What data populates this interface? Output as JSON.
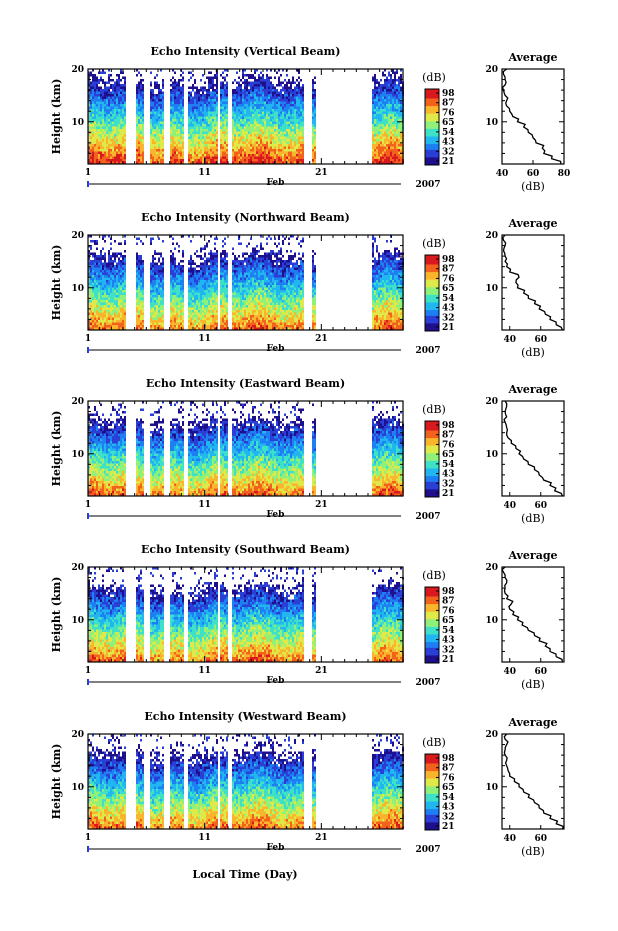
{
  "colors": {
    "colormap": [
      "#1e0f8c",
      "#2a3fd6",
      "#1d7ff2",
      "#22b6f0",
      "#3fe0c8",
      "#8ff07a",
      "#dfe94a",
      "#f9b52b",
      "#f3621d",
      "#d8191e"
    ]
  },
  "xlabel": "Local Time (Day)",
  "chart_data": [
    {
      "type": "heatmap",
      "title": "Echo Intensity (Vertical Beam)",
      "ylabel": "Height (km)",
      "ylim": [
        2,
        20
      ],
      "y_ticks": [
        "20",
        "10"
      ],
      "x_ticks": [
        "1",
        "11",
        "21"
      ],
      "x_month": "Feb",
      "x_year": "2007",
      "xlim": [
        1,
        28
      ],
      "colorbar": {
        "label": "(dB)",
        "ticks": [
          "98",
          "87",
          "76",
          "65",
          "54",
          "43",
          "32",
          "21"
        ]
      },
      "data_gaps_days": [
        [
          4.2,
          5.1
        ],
        [
          5.7,
          6.2
        ],
        [
          7.5,
          7.9
        ],
        [
          9.1,
          9.5
        ],
        [
          12.0,
          12.3
        ],
        [
          12.9,
          13.2
        ],
        [
          19.5,
          20.1
        ],
        [
          20.5,
          25.2
        ]
      ],
      "average_profile": {
        "title": "Average",
        "xlabel": "(dB)",
        "xlim": [
          40,
          80
        ],
        "x_ticks": [
          "40",
          "60",
          "80"
        ],
        "y_ticks": [
          "20",
          "10"
        ],
        "height_km": [
          2,
          3,
          4,
          5,
          6,
          7,
          8,
          9,
          10,
          11,
          12,
          13,
          14,
          15,
          16,
          17,
          18,
          19,
          20
        ],
        "db": [
          78,
          72,
          67,
          66,
          62,
          60,
          57,
          54,
          50,
          47,
          45,
          43,
          43,
          42,
          41,
          42,
          42,
          41,
          43
        ]
      }
    },
    {
      "type": "heatmap",
      "title": "Echo Intensity (Northward Beam)",
      "ylabel": "Height (km)",
      "ylim": [
        2,
        20
      ],
      "y_ticks": [
        "20",
        "10"
      ],
      "x_ticks": [
        "1",
        "11",
        "21"
      ],
      "x_month": "Feb",
      "x_year": "2007",
      "xlim": [
        1,
        28
      ],
      "colorbar": {
        "label": "(dB)",
        "ticks": [
          "98",
          "87",
          "76",
          "65",
          "54",
          "43",
          "32",
          "21"
        ]
      },
      "data_gaps_days": [
        [
          4.2,
          5.1
        ],
        [
          5.7,
          6.2
        ],
        [
          7.5,
          7.9
        ],
        [
          9.1,
          9.5
        ],
        [
          12.0,
          12.3
        ],
        [
          12.9,
          13.2
        ],
        [
          19.5,
          20.1
        ],
        [
          20.5,
          25.2
        ]
      ],
      "average_profile": {
        "title": "Average",
        "xlabel": "(dB)",
        "xlim": [
          35,
          75
        ],
        "x_ticks": [
          "40",
          "60"
        ],
        "y_ticks": [
          "20",
          "10"
        ],
        "height_km": [
          2,
          3,
          4,
          5,
          6,
          7,
          8,
          9,
          10,
          11,
          12,
          13,
          14,
          15,
          16,
          17,
          18,
          19,
          20
        ],
        "db": [
          74,
          70,
          66,
          63,
          59,
          56,
          52,
          49,
          45,
          44,
          46,
          40,
          38,
          37,
          37,
          36,
          37,
          36,
          37
        ]
      }
    },
    {
      "type": "heatmap",
      "title": "Echo Intensity (Eastward Beam)",
      "ylabel": "Height (km)",
      "ylim": [
        2,
        20
      ],
      "y_ticks": [
        "20",
        "10"
      ],
      "x_ticks": [
        "1",
        "11",
        "21"
      ],
      "x_month": "Feb",
      "x_year": "2007",
      "xlim": [
        1,
        28
      ],
      "colorbar": {
        "label": "(dB)",
        "ticks": [
          "98",
          "87",
          "76",
          "65",
          "54",
          "43",
          "32",
          "21"
        ]
      },
      "data_gaps_days": [
        [
          4.2,
          5.1
        ],
        [
          5.7,
          6.2
        ],
        [
          7.5,
          7.9
        ],
        [
          9.1,
          9.5
        ],
        [
          12.0,
          12.3
        ],
        [
          12.9,
          13.2
        ],
        [
          19.5,
          20.1
        ],
        [
          20.5,
          25.2
        ]
      ],
      "average_profile": {
        "title": "Average",
        "xlabel": "(dB)",
        "xlim": [
          35,
          75
        ],
        "x_ticks": [
          "40",
          "60"
        ],
        "y_ticks": [
          "20",
          "10"
        ],
        "height_km": [
          2,
          3,
          4,
          5,
          6,
          7,
          8,
          9,
          10,
          11,
          12,
          13,
          14,
          15,
          16,
          17,
          18,
          19,
          20
        ],
        "db": [
          74,
          69,
          66,
          62,
          59,
          56,
          52,
          49,
          46,
          44,
          41,
          39,
          38,
          38,
          37,
          38,
          37,
          38,
          37
        ]
      }
    },
    {
      "type": "heatmap",
      "title": "Echo Intensity (Southward Beam)",
      "ylabel": "Height (km)",
      "ylim": [
        2,
        20
      ],
      "y_ticks": [
        "20",
        "10"
      ],
      "x_ticks": [
        "1",
        "11",
        "21"
      ],
      "x_month": "Feb",
      "x_year": "2007",
      "xlim": [
        1,
        28
      ],
      "colorbar": {
        "label": "(dB)",
        "ticks": [
          "98",
          "87",
          "76",
          "65",
          "54",
          "43",
          "32",
          "21"
        ]
      },
      "data_gaps_days": [
        [
          4.2,
          5.1
        ],
        [
          5.7,
          6.2
        ],
        [
          7.5,
          7.9
        ],
        [
          9.1,
          9.5
        ],
        [
          12.0,
          12.3
        ],
        [
          12.9,
          13.2
        ],
        [
          19.5,
          20.1
        ],
        [
          20.5,
          25.2
        ]
      ],
      "average_profile": {
        "title": "Average",
        "xlabel": "(dB)",
        "xlim": [
          35,
          75
        ],
        "x_ticks": [
          "40",
          "60"
        ],
        "y_ticks": [
          "20",
          "10"
        ],
        "height_km": [
          2,
          3,
          4,
          5,
          6,
          7,
          8,
          9,
          10,
          11,
          12,
          13,
          14,
          15,
          16,
          17,
          18,
          19,
          20
        ],
        "db": [
          74,
          70,
          66,
          63,
          59,
          56,
          52,
          48,
          45,
          42,
          40,
          41,
          38,
          37,
          37,
          38,
          37,
          36,
          37
        ]
      }
    },
    {
      "type": "heatmap",
      "title": "Echo Intensity (Westward Beam)",
      "ylabel": "Height (km)",
      "ylim": [
        2,
        20
      ],
      "y_ticks": [
        "20",
        "10"
      ],
      "x_ticks": [
        "1",
        "11",
        "21"
      ],
      "x_month": "Feb",
      "x_year": "2007",
      "xlim": [
        1,
        28
      ],
      "colorbar": {
        "label": "(dB)",
        "ticks": [
          "98",
          "87",
          "76",
          "65",
          "54",
          "43",
          "32",
          "21"
        ]
      },
      "data_gaps_days": [
        [
          4.2,
          5.1
        ],
        [
          5.7,
          6.2
        ],
        [
          7.5,
          7.9
        ],
        [
          9.1,
          9.5
        ],
        [
          12.0,
          12.3
        ],
        [
          12.9,
          13.2
        ],
        [
          19.5,
          20.1
        ],
        [
          20.5,
          25.2
        ]
      ],
      "average_profile": {
        "title": "Average",
        "xlabel": "(dB)",
        "xlim": [
          35,
          75
        ],
        "x_ticks": [
          "40",
          "60"
        ],
        "y_ticks": [
          "20",
          "10"
        ],
        "height_km": [
          2,
          3,
          4,
          5,
          6,
          7,
          8,
          9,
          10,
          11,
          12,
          13,
          14,
          15,
          16,
          17,
          18,
          19,
          20
        ],
        "db": [
          74,
          70,
          66,
          62,
          59,
          56,
          52,
          49,
          46,
          43,
          40,
          39,
          38,
          38,
          37,
          37,
          38,
          37,
          38
        ]
      }
    }
  ]
}
